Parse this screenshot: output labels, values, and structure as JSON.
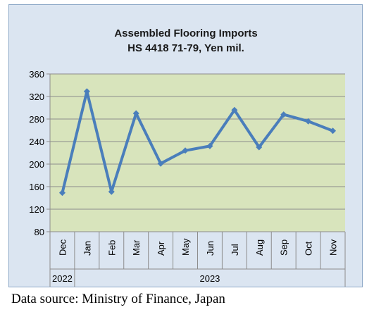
{
  "chart_data": {
    "type": "line",
    "title": "Assembled Flooring Imports",
    "subtitle": "HS 4418 71-79, Yen mil.",
    "categories": [
      "Dec",
      "Jan",
      "Feb",
      "Mar",
      "Apr",
      "May",
      "Jun",
      "Jul",
      "Aug",
      "Sep",
      "Oct",
      "Nov"
    ],
    "year_groups": [
      {
        "label": "2022",
        "count": 1
      },
      {
        "label": "2023",
        "count": 11
      }
    ],
    "values": [
      149,
      329,
      151,
      290,
      201,
      224,
      232,
      296,
      230,
      288,
      276,
      259
    ],
    "ylim": [
      80,
      360
    ],
    "yticks": [
      "80",
      "120",
      "160",
      "200",
      "240",
      "280",
      "320",
      "360"
    ],
    "xlabel": "",
    "ylabel": "",
    "grid": true,
    "colors": {
      "line": "#4a7ebb",
      "plot_bg": "#d8e4bc",
      "chart_bg": "#dbe5f1",
      "grid": "#8c8c8c"
    }
  },
  "source_note": "Data source: Ministry of Finance, Japan"
}
